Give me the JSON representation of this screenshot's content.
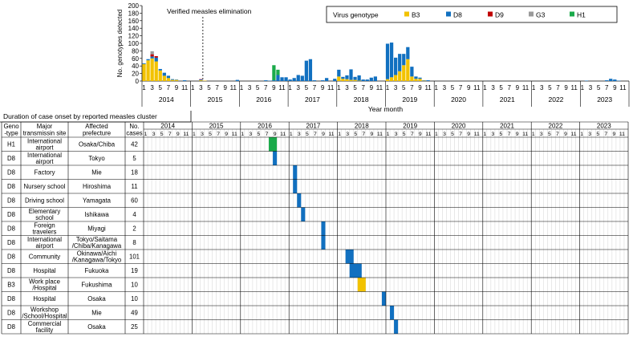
{
  "chart_data": [
    {
      "type": "bar",
      "stacked": true,
      "ylabel": "No. genotypes detected",
      "xlabel": "Year month",
      "ylim": [
        0,
        200
      ],
      "yticks": [
        0,
        20,
        40,
        60,
        80,
        100,
        120,
        140,
        160,
        180,
        200
      ],
      "month_tick_labels": [
        "1",
        "3",
        "5",
        "7",
        "9",
        "11"
      ],
      "years": [
        "2014",
        "2015",
        "2016",
        "2017",
        "2018",
        "2019",
        "2020",
        "2021",
        "2022",
        "2023"
      ],
      "annotation": "Verified measles elimination",
      "annotation_month_index": 15,
      "legend": {
        "title": "Virus genotype",
        "position": "top-right"
      },
      "series": [
        {
          "name": "B3",
          "color": "#f2c200",
          "values": [
            45,
            55,
            60,
            52,
            28,
            14,
            8,
            3,
            3,
            0,
            0,
            0,
            0,
            0,
            2,
            1,
            0,
            0,
            0,
            0,
            0,
            0,
            0,
            0,
            0,
            0,
            0,
            0,
            0,
            0,
            0,
            0,
            0,
            0,
            0,
            0,
            0,
            0,
            0,
            0,
            0,
            0,
            0,
            0,
            0,
            0,
            0,
            0,
            12,
            6,
            5,
            3,
            3,
            1,
            0,
            0,
            0,
            0,
            0,
            0,
            5,
            10,
            16,
            26,
            42,
            58,
            12,
            6,
            6,
            1,
            0,
            0,
            0,
            0,
            0,
            0,
            0,
            0,
            0,
            0,
            0,
            0,
            0,
            0,
            0,
            0,
            0,
            0,
            0,
            0,
            0,
            0,
            0,
            0,
            0,
            0,
            0,
            0,
            0,
            0,
            0,
            0,
            0,
            0,
            0,
            0,
            0,
            0,
            0,
            0,
            0,
            0,
            0,
            0,
            0,
            0,
            0,
            0,
            0,
            0
          ]
        },
        {
          "name": "D8",
          "color": "#1170c0",
          "values": [
            2,
            3,
            5,
            10,
            4,
            8,
            6,
            2,
            1,
            0,
            2,
            0,
            0,
            0,
            2,
            0,
            0,
            0,
            0,
            0,
            0,
            0,
            0,
            3,
            0,
            0,
            0,
            0,
            0,
            0,
            2,
            1,
            2,
            16,
            10,
            10,
            4,
            8,
            16,
            14,
            54,
            58,
            2,
            0,
            2,
            8,
            0,
            6,
            18,
            5,
            10,
            28,
            8,
            14,
            4,
            4,
            9,
            12,
            0,
            0,
            94,
            92,
            46,
            46,
            30,
            32,
            26,
            6,
            3,
            1,
            2,
            0,
            0,
            0,
            0,
            0,
            0,
            0,
            0,
            0,
            0,
            0,
            0,
            0,
            0,
            0,
            0,
            0,
            0,
            0,
            0,
            0,
            0,
            0,
            0,
            0,
            0,
            0,
            0,
            0,
            0,
            0,
            0,
            0,
            0,
            0,
            0,
            0,
            0,
            1,
            0,
            0,
            0,
            0,
            2,
            6,
            4,
            1,
            0,
            0
          ]
        },
        {
          "name": "D9",
          "color": "#c00000",
          "values": [
            0,
            0,
            6,
            4,
            0,
            0,
            0,
            0,
            0,
            0,
            0,
            0,
            0,
            0,
            1,
            0,
            0,
            0,
            0,
            0,
            0,
            0,
            0,
            0,
            0,
            0,
            0,
            0,
            0,
            0,
            0,
            0,
            0,
            0,
            0,
            0,
            0,
            0,
            0,
            0,
            0,
            0,
            0,
            0,
            0,
            0,
            0,
            0,
            0,
            0,
            0,
            0,
            0,
            0,
            0,
            0,
            0,
            0,
            0,
            0,
            0,
            0,
            0,
            0,
            0,
            0,
            0,
            0,
            0,
            0,
            0,
            0,
            0,
            0,
            0,
            0,
            0,
            0,
            0,
            0,
            0,
            0,
            0,
            0,
            0,
            0,
            0,
            0,
            0,
            0,
            0,
            0,
            0,
            0,
            0,
            0,
            0,
            0,
            0,
            0,
            0,
            0,
            0,
            0,
            0,
            0,
            0,
            0,
            0,
            0,
            0,
            0,
            0,
            0,
            0,
            0,
            0,
            0,
            0,
            0
          ]
        },
        {
          "name": "G3",
          "color": "#9a9a9a",
          "values": [
            0,
            0,
            8,
            0,
            0,
            0,
            0,
            0,
            0,
            0,
            0,
            0,
            0,
            0,
            0,
            0,
            0,
            0,
            0,
            0,
            0,
            0,
            0,
            0,
            0,
            0,
            0,
            0,
            0,
            0,
            0,
            0,
            0,
            0,
            0,
            0,
            0,
            0,
            0,
            0,
            0,
            0,
            0,
            0,
            0,
            0,
            0,
            0,
            0,
            0,
            0,
            0,
            0,
            0,
            0,
            0,
            0,
            0,
            0,
            0,
            0,
            0,
            0,
            0,
            0,
            0,
            0,
            0,
            0,
            0,
            0,
            0,
            0,
            0,
            0,
            0,
            0,
            0,
            0,
            0,
            0,
            0,
            0,
            0,
            0,
            0,
            0,
            0,
            0,
            0,
            0,
            0,
            0,
            0,
            0,
            0,
            0,
            0,
            0,
            0,
            0,
            0,
            0,
            0,
            0,
            0,
            0,
            0,
            0,
            0,
            0,
            0,
            0,
            0,
            0,
            0,
            0,
            0,
            0,
            0
          ]
        },
        {
          "name": "H1",
          "color": "#1aaa4a",
          "values": [
            0,
            0,
            0,
            0,
            0,
            0,
            0,
            0,
            0,
            0,
            0,
            0,
            0,
            0,
            0,
            0,
            0,
            0,
            0,
            0,
            0,
            0,
            0,
            0,
            0,
            0,
            0,
            0,
            0,
            0,
            0,
            0,
            40,
            14,
            0,
            0,
            0,
            0,
            0,
            0,
            0,
            0,
            0,
            0,
            0,
            0,
            0,
            0,
            0,
            0,
            0,
            0,
            0,
            0,
            0,
            0,
            0,
            0,
            0,
            0,
            0,
            0,
            0,
            0,
            0,
            0,
            0,
            0,
            0,
            0,
            0,
            0,
            0,
            0,
            0,
            0,
            0,
            0,
            0,
            0,
            0,
            0,
            0,
            0,
            0,
            0,
            0,
            0,
            0,
            0,
            0,
            0,
            0,
            0,
            0,
            0,
            0,
            0,
            0,
            0,
            0,
            0,
            0,
            0,
            0,
            0,
            0,
            0,
            0,
            0,
            0,
            0,
            0,
            0,
            0,
            0,
            0,
            0,
            0,
            0
          ]
        }
      ]
    },
    {
      "type": "table",
      "title": "Duration of case onset by reported measles cluster",
      "columns": [
        "Geno\n-type",
        "Major\ntransmissin site",
        "Affected\nprefecture",
        "No.\ncases"
      ],
      "years": [
        "2014",
        "2015",
        "2016",
        "2017",
        "2018",
        "2019",
        "2020",
        "2021",
        "2022",
        "2023"
      ],
      "month_tick_labels": [
        "1",
        "3",
        "5",
        "7",
        "9",
        "11"
      ],
      "rows": [
        {
          "genotype": "H1",
          "site": "International\nairport",
          "prefecture": "Osaka/Chiba",
          "cases": "42",
          "onset_start": "2016-08",
          "onset_end": "2016-09"
        },
        {
          "genotype": "D8",
          "site": "International\nairport",
          "prefecture": "Tokyo",
          "cases": "5",
          "onset_start": "2016-09",
          "onset_end": "2016-09"
        },
        {
          "genotype": "D8",
          "site": "Factory",
          "prefecture": "Mie",
          "cases": "18",
          "onset_start": "2017-02",
          "onset_end": "2017-02"
        },
        {
          "genotype": "D8",
          "site": "Nursery school",
          "prefecture": "Hiroshima",
          "cases": "11",
          "onset_start": "2017-02",
          "onset_end": "2017-02"
        },
        {
          "genotype": "D8",
          "site": "Driving school",
          "prefecture": "Yamagata",
          "cases": "60",
          "onset_start": "2017-03",
          "onset_end": "2017-03"
        },
        {
          "genotype": "D8",
          "site": "Elementary\nschool",
          "prefecture": "Ishikawa",
          "cases": "4",
          "onset_start": "2017-04",
          "onset_end": "2017-04"
        },
        {
          "genotype": "D8",
          "site": "Foreign\ntravelers",
          "prefecture": "Miyagi",
          "cases": "2",
          "onset_start": "2017-09",
          "onset_end": "2017-09"
        },
        {
          "genotype": "D8",
          "site": "International\nairport",
          "prefecture": "Tokyo/Saitama\n/Chiba/Kanagawa",
          "cases": "8",
          "onset_start": "2017-09",
          "onset_end": "2017-09"
        },
        {
          "genotype": "D8",
          "site": "Community",
          "prefecture": "Okinawa/Aichi\n/Kanagawa/Tokyo",
          "cases": "101",
          "onset_start": "2018-03",
          "onset_end": "2018-04"
        },
        {
          "genotype": "D8",
          "site": "Hospital",
          "prefecture": "Fukuoka",
          "cases": "19",
          "onset_start": "2018-04",
          "onset_end": "2018-06"
        },
        {
          "genotype": "B3",
          "site": "Work place\n/Hospital",
          "prefecture": "Fukushima",
          "cases": "10",
          "onset_start": "2018-06",
          "onset_end": "2018-07"
        },
        {
          "genotype": "D8",
          "site": "Hospital",
          "prefecture": "Osaka",
          "cases": "10",
          "onset_start": "2018-12",
          "onset_end": "2018-12"
        },
        {
          "genotype": "D8",
          "site": "Workshop\n/School/Hospital",
          "prefecture": "Mie",
          "cases": "49",
          "onset_start": "2019-02",
          "onset_end": "2019-02"
        },
        {
          "genotype": "D8",
          "site": "Commercial\nfacility",
          "prefecture": "Osaka",
          "cases": "25",
          "onset_start": "2019-03",
          "onset_end": "2019-03"
        }
      ]
    }
  ]
}
